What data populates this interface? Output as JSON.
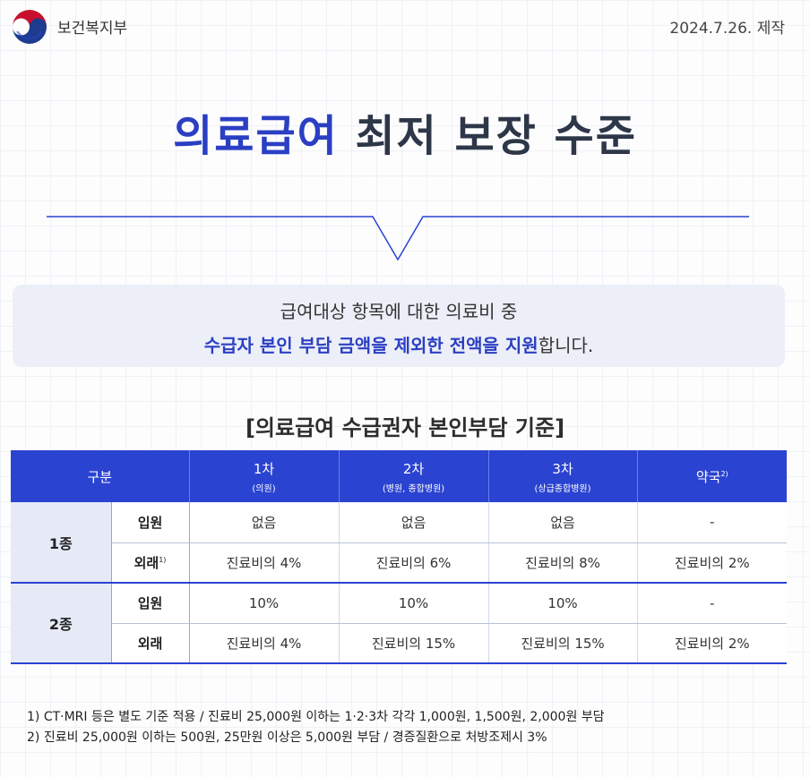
{
  "header": {
    "org_name": "보건복지부",
    "date": "2024.7.26. 제작",
    "logo_icon": "korea-government-emblem-icon"
  },
  "title": {
    "accent": "의료급여",
    "rest": " 최저 보장 수준"
  },
  "summary": {
    "line1": "급여대상 항목에 대한 의료비 중",
    "line2_em": "수급자 본인 부담 금액을 제외한 전액을 지원",
    "line2_rest": "합니다."
  },
  "table": {
    "title": "[의료급여 수급권자 본인부담 기준]",
    "header": {
      "category": "구분",
      "col1": {
        "main": "1차",
        "sub": "(의원)"
      },
      "col2": {
        "main": "2차",
        "sub": "(병원, 종합병원)"
      },
      "col3": {
        "main": "3차",
        "sub": "(상급종합병원)"
      },
      "col4": {
        "main": "약국",
        "sup": "2)"
      }
    },
    "groups": [
      {
        "type": "1종",
        "rows": [
          {
            "label": "입원",
            "sup": "",
            "values": [
              "없음",
              "없음",
              "없음",
              "-"
            ]
          },
          {
            "label": "외래",
            "sup": "1)",
            "values": [
              "진료비의 4%",
              "진료비의 6%",
              "진료비의 8%",
              "진료비의 2%"
            ]
          }
        ]
      },
      {
        "type": "2종",
        "rows": [
          {
            "label": "입원",
            "sup": "",
            "values": [
              "10%",
              "10%",
              "10%",
              "-"
            ]
          },
          {
            "label": "외래",
            "sup": "",
            "values": [
              "진료비의 4%",
              "진료비의 15%",
              "진료비의 15%",
              "진료비의 2%"
            ]
          }
        ]
      }
    ]
  },
  "footnotes": [
    "1) CT·MRI 등은 별도 기준 적용 / 진료비 25,000원 이하는 1·2·3차 각각 1,000원, 1,500원, 2,000원 부담",
    "2) 진료비 25,000원 이하는 500원, 25만원 이상은 5,000원 부담 / 경증질환으로 처방조제시 3%"
  ],
  "colors": {
    "accent": "#2b3fc3",
    "table_header": "#2b43d1",
    "summary_bg": "#eceff8",
    "type_cell_bg": "#e6eaf7"
  }
}
